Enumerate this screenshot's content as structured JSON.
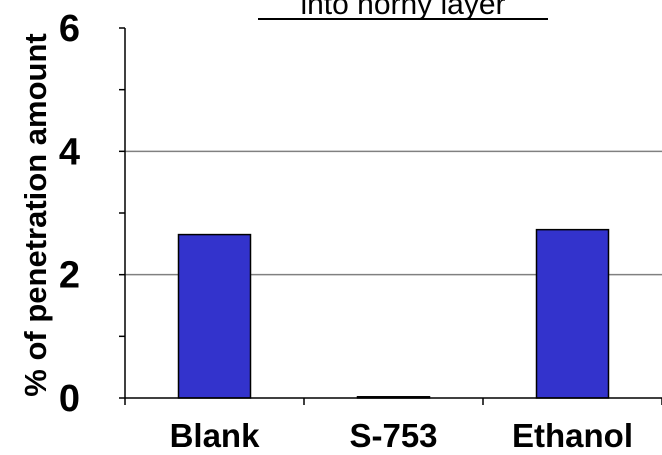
{
  "chart_data": {
    "type": "bar",
    "title": "into horny layer",
    "xlabel": "",
    "ylabel": "% of penetration amount",
    "categories": [
      "Blank",
      "S-753",
      "Ethanol"
    ],
    "values": [
      2.65,
      0.02,
      2.73
    ],
    "ylim": [
      0,
      6
    ],
    "yticks": [
      "0",
      "2",
      "4",
      "6"
    ],
    "grid": true,
    "bar_color": "#3333cc"
  }
}
